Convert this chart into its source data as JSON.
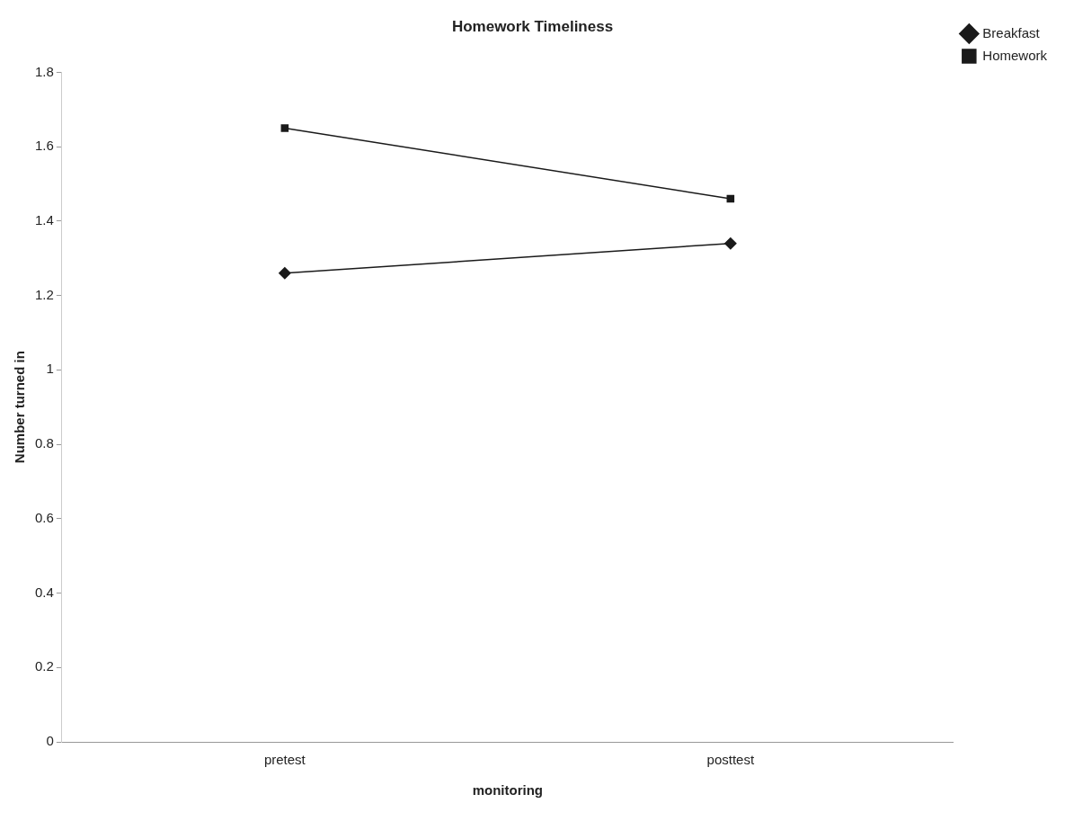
{
  "chart_data": {
    "type": "line",
    "title": "Homework Timeliness",
    "xlabel": "monitoring",
    "ylabel": "Number turned in",
    "categories": [
      "pretest",
      "posttest"
    ],
    "series": [
      {
        "name": "Breakfast",
        "color": "#1a1a1a",
        "marker": "diamond",
        "values": [
          1.26,
          1.34
        ]
      },
      {
        "name": "Homework",
        "color": "#1a1a1a",
        "marker": "square",
        "values": [
          1.65,
          1.46
        ]
      }
    ],
    "ylim": [
      0,
      1.8
    ],
    "yticks": [
      0,
      {
        "value": 0.2,
        "label": "0.2"
      },
      {
        "value": 0.4,
        "label": "0.4"
      },
      {
        "value": 0.6,
        "label": "0.6"
      },
      {
        "value": 0.8,
        "label": "0.8"
      },
      1,
      {
        "value": 1.2,
        "label": "1.2"
      },
      {
        "value": 1.4,
        "label": "1.4"
      },
      {
        "value": 1.6,
        "label": "1.6"
      },
      {
        "value": 1.8,
        "label": "1.8"
      }
    ],
    "grid": false,
    "legend": "top right",
    "line_style": "solid"
  }
}
